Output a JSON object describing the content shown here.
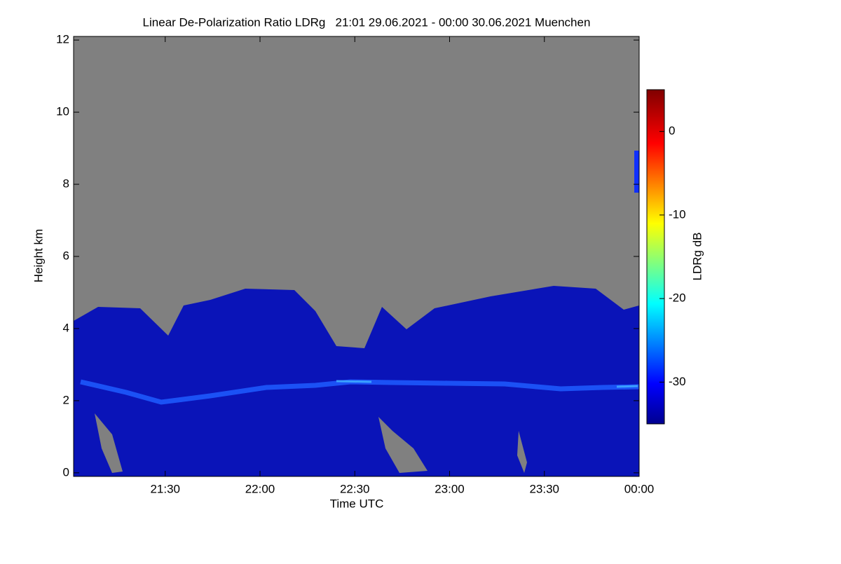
{
  "chart_data": {
    "type": "heatmap",
    "title": "Linear De-Polarization Ratio LDRg   21:01 29.06.2021 - 00:00 30.06.2021 Muenchen",
    "xlabel": "Time UTC",
    "ylabel": "Height km",
    "xlim": [
      "21:01",
      "00:00"
    ],
    "xticks": [
      "21:30",
      "22:00",
      "22:30",
      "23:00",
      "23:30",
      "00:00"
    ],
    "ylim": [
      -0.1,
      12.1
    ],
    "yticks": [
      0,
      2,
      4,
      6,
      8,
      10,
      12
    ],
    "colorbar": {
      "label": "LDRg dB",
      "lim": [
        -35,
        5
      ],
      "ticks": [
        0,
        -10,
        -20,
        -30
      ]
    }
  }
}
